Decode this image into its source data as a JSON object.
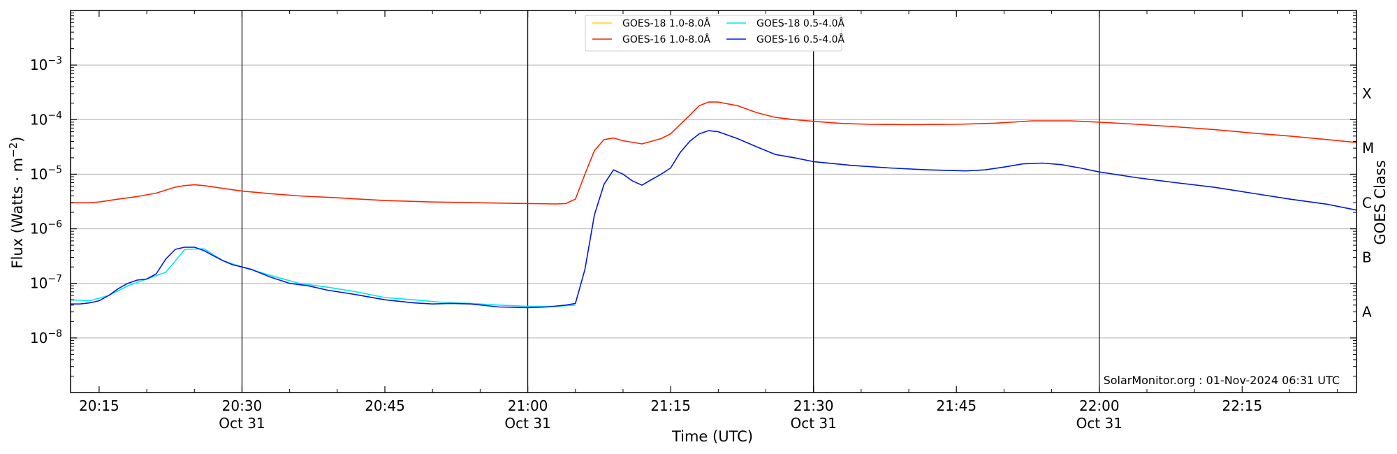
{
  "chart_data": {
    "type": "line",
    "xlabel": "Time (UTC)",
    "ylabel_main": "Flux (Watts · m",
    "ylabel_sup": "−2",
    "ylabel_close": ")",
    "ylabel_right": "GOES Class",
    "credit": "SolarMonitor.org : 01-Nov-2024 06:31 UTC",
    "y_scale": "log",
    "ylim": [
      1e-09,
      0.01
    ],
    "xlim": [
      "20:12",
      "22:27"
    ],
    "grid": "horizontal at decades",
    "legend_placement": "top-center",
    "x_ticks": [
      {
        "time": "20:15",
        "label": "20:15",
        "date": ""
      },
      {
        "time": "20:30",
        "label": "20:30",
        "date": "Oct 31"
      },
      {
        "time": "20:45",
        "label": "20:45",
        "date": ""
      },
      {
        "time": "21:00",
        "label": "21:00",
        "date": "Oct 31"
      },
      {
        "time": "21:15",
        "label": "21:15",
        "date": ""
      },
      {
        "time": "21:30",
        "label": "21:30",
        "date": "Oct 31"
      },
      {
        "time": "21:45",
        "label": "21:45",
        "date": ""
      },
      {
        "time": "22:00",
        "label": "22:00",
        "date": "Oct 31"
      },
      {
        "time": "22:15",
        "label": "22:15",
        "date": ""
      }
    ],
    "vertical_lines": [
      "20:30",
      "21:00",
      "21:30",
      "22:00"
    ],
    "y_ticks": [
      {
        "value": 1e-08,
        "base": "10",
        "exp": "−8"
      },
      {
        "value": 1e-07,
        "base": "10",
        "exp": "−7"
      },
      {
        "value": 1e-06,
        "base": "10",
        "exp": "−6"
      },
      {
        "value": 1e-05,
        "base": "10",
        "exp": "−5"
      },
      {
        "value": 0.0001,
        "base": "10",
        "exp": "−4"
      },
      {
        "value": 0.001,
        "base": "10",
        "exp": "−3"
      }
    ],
    "goes_classes": [
      {
        "label": "A",
        "value": 3e-08
      },
      {
        "label": "B",
        "value": 3e-07
      },
      {
        "label": "C",
        "value": 3e-06
      },
      {
        "label": "M",
        "value": 3e-05
      },
      {
        "label": "X",
        "value": 0.0003
      }
    ],
    "series": [
      {
        "name": "GOES-18 1.0-8.0Å",
        "color": "#ffd700",
        "x": [],
        "y": []
      },
      {
        "name": "GOES-18 0.5-4.0Å",
        "color": "#00e5ff",
        "x": [
          "20:12",
          "20:14",
          "20:16",
          "20:18",
          "20:20",
          "20:22",
          "20:24",
          "20:26",
          "20:28",
          "20:30",
          "20:33",
          "20:36",
          "20:39",
          "20:42",
          "20:45",
          "20:48",
          "20:51",
          "20:54",
          "20:57",
          "21:00",
          "21:03",
          "21:05"
        ],
        "y": [
          5e-08,
          4.8e-08,
          6e-08,
          9e-08,
          1.2e-07,
          1.6e-07,
          4.2e-07,
          4.3e-07,
          2.6e-07,
          2e-07,
          1.4e-07,
          1e-07,
          8.5e-08,
          7e-08,
          5.5e-08,
          5e-08,
          4.5e-08,
          4.3e-08,
          4e-08,
          3.8e-08,
          3.8e-08,
          4e-08
        ]
      },
      {
        "name": "GOES-16 1.0-8.0Å",
        "color": "#ff2200",
        "x": [
          "20:12",
          "20:14",
          "20:15",
          "20:17",
          "20:19",
          "20:21",
          "20:23",
          "20:24",
          "20:25",
          "20:26",
          "20:28",
          "20:30",
          "20:33",
          "20:36",
          "20:40",
          "20:45",
          "20:50",
          "20:55",
          "21:00",
          "21:03",
          "21:04",
          "21:05",
          "21:06",
          "21:07",
          "21:08",
          "21:09",
          "21:10",
          "21:12",
          "21:14",
          "21:15",
          "21:17",
          "21:18",
          "21:19",
          "21:20",
          "21:22",
          "21:24",
          "21:26",
          "21:28",
          "21:30",
          "21:33",
          "21:36",
          "21:40",
          "21:45",
          "21:49",
          "21:53",
          "21:57",
          "22:00",
          "22:04",
          "22:08",
          "22:12",
          "22:16",
          "22:20",
          "22:24",
          "22:27"
        ],
        "y": [
          3e-06,
          3e-06,
          3.1e-06,
          3.5e-06,
          3.9e-06,
          4.5e-06,
          5.8e-06,
          6.2e-06,
          6.4e-06,
          6.2e-06,
          5.5e-06,
          4.9e-06,
          4.4e-06,
          4e-06,
          3.7e-06,
          3.3e-06,
          3.1e-06,
          3e-06,
          2.9e-06,
          2.85e-06,
          2.9e-06,
          3.5e-06,
          1e-05,
          2.7e-05,
          4.3e-05,
          4.6e-05,
          4.1e-05,
          3.6e-05,
          4.5e-05,
          5.5e-05,
          0.00012,
          0.00018,
          0.00021,
          0.00021,
          0.00018,
          0.000135,
          0.00011,
          0.0001,
          9.3e-05,
          8.5e-05,
          8.2e-05,
          8.1e-05,
          8.2e-05,
          8.6e-05,
          9.5e-05,
          9.5e-05,
          9e-05,
          8.2e-05,
          7.4e-05,
          6.6e-05,
          5.7e-05,
          5e-05,
          4.3e-05,
          3.8e-05
        ]
      },
      {
        "name": "GOES-16 0.5-4.0Å",
        "color": "#0018e0",
        "x": [
          "20:12",
          "20:13",
          "20:14",
          "20:15",
          "20:16",
          "20:17",
          "20:18",
          "20:19",
          "20:20",
          "20:21",
          "20:22",
          "20:23",
          "20:24",
          "20:25",
          "20:26",
          "20:27",
          "20:28",
          "20:29",
          "20:30",
          "20:31",
          "20:33",
          "20:35",
          "20:37",
          "20:39",
          "20:42",
          "20:45",
          "20:48",
          "20:50",
          "20:52",
          "20:54",
          "20:57",
          "21:00",
          "21:02",
          "21:04",
          "21:05",
          "21:06",
          "21:07",
          "21:08",
          "21:09",
          "21:10",
          "21:11",
          "21:12",
          "21:13",
          "21:14",
          "21:15",
          "21:16",
          "21:17",
          "21:18",
          "21:19",
          "21:20",
          "21:22",
          "21:24",
          "21:26",
          "21:28",
          "21:30",
          "21:34",
          "21:38",
          "21:42",
          "21:46",
          "21:48",
          "21:50",
          "21:52",
          "21:54",
          "21:56",
          "21:58",
          "22:00",
          "22:04",
          "22:08",
          "22:12",
          "22:16",
          "22:20",
          "22:24",
          "22:27"
        ],
        "y": [
          4.2e-08,
          4.2e-08,
          4.4e-08,
          4.8e-08,
          6e-08,
          8e-08,
          1e-07,
          1.15e-07,
          1.2e-07,
          1.5e-07,
          2.8e-07,
          4.2e-07,
          4.6e-07,
          4.6e-07,
          4e-07,
          3.2e-07,
          2.6e-07,
          2.2e-07,
          2e-07,
          1.8e-07,
          1.3e-07,
          1e-07,
          9e-08,
          7.5e-08,
          6.2e-08,
          5e-08,
          4.4e-08,
          4.2e-08,
          4.3e-08,
          4.2e-08,
          3.7e-08,
          3.6e-08,
          3.7e-08,
          4e-08,
          4.3e-08,
          1.8e-07,
          1.8e-06,
          6.5e-06,
          1.2e-05,
          1e-05,
          7.5e-06,
          6.3e-06,
          8e-06,
          1e-05,
          1.3e-05,
          2.5e-05,
          4e-05,
          5.5e-05,
          6.3e-05,
          6e-05,
          4.5e-05,
          3.2e-05,
          2.3e-05,
          2e-05,
          1.7e-05,
          1.45e-05,
          1.3e-05,
          1.2e-05,
          1.15e-05,
          1.2e-05,
          1.35e-05,
          1.55e-05,
          1.6e-05,
          1.5e-05,
          1.3e-05,
          1.1e-05,
          8.6e-06,
          7e-06,
          5.8e-06,
          4.5e-06,
          3.5e-06,
          2.8e-06,
          2.2e-06
        ]
      }
    ]
  }
}
